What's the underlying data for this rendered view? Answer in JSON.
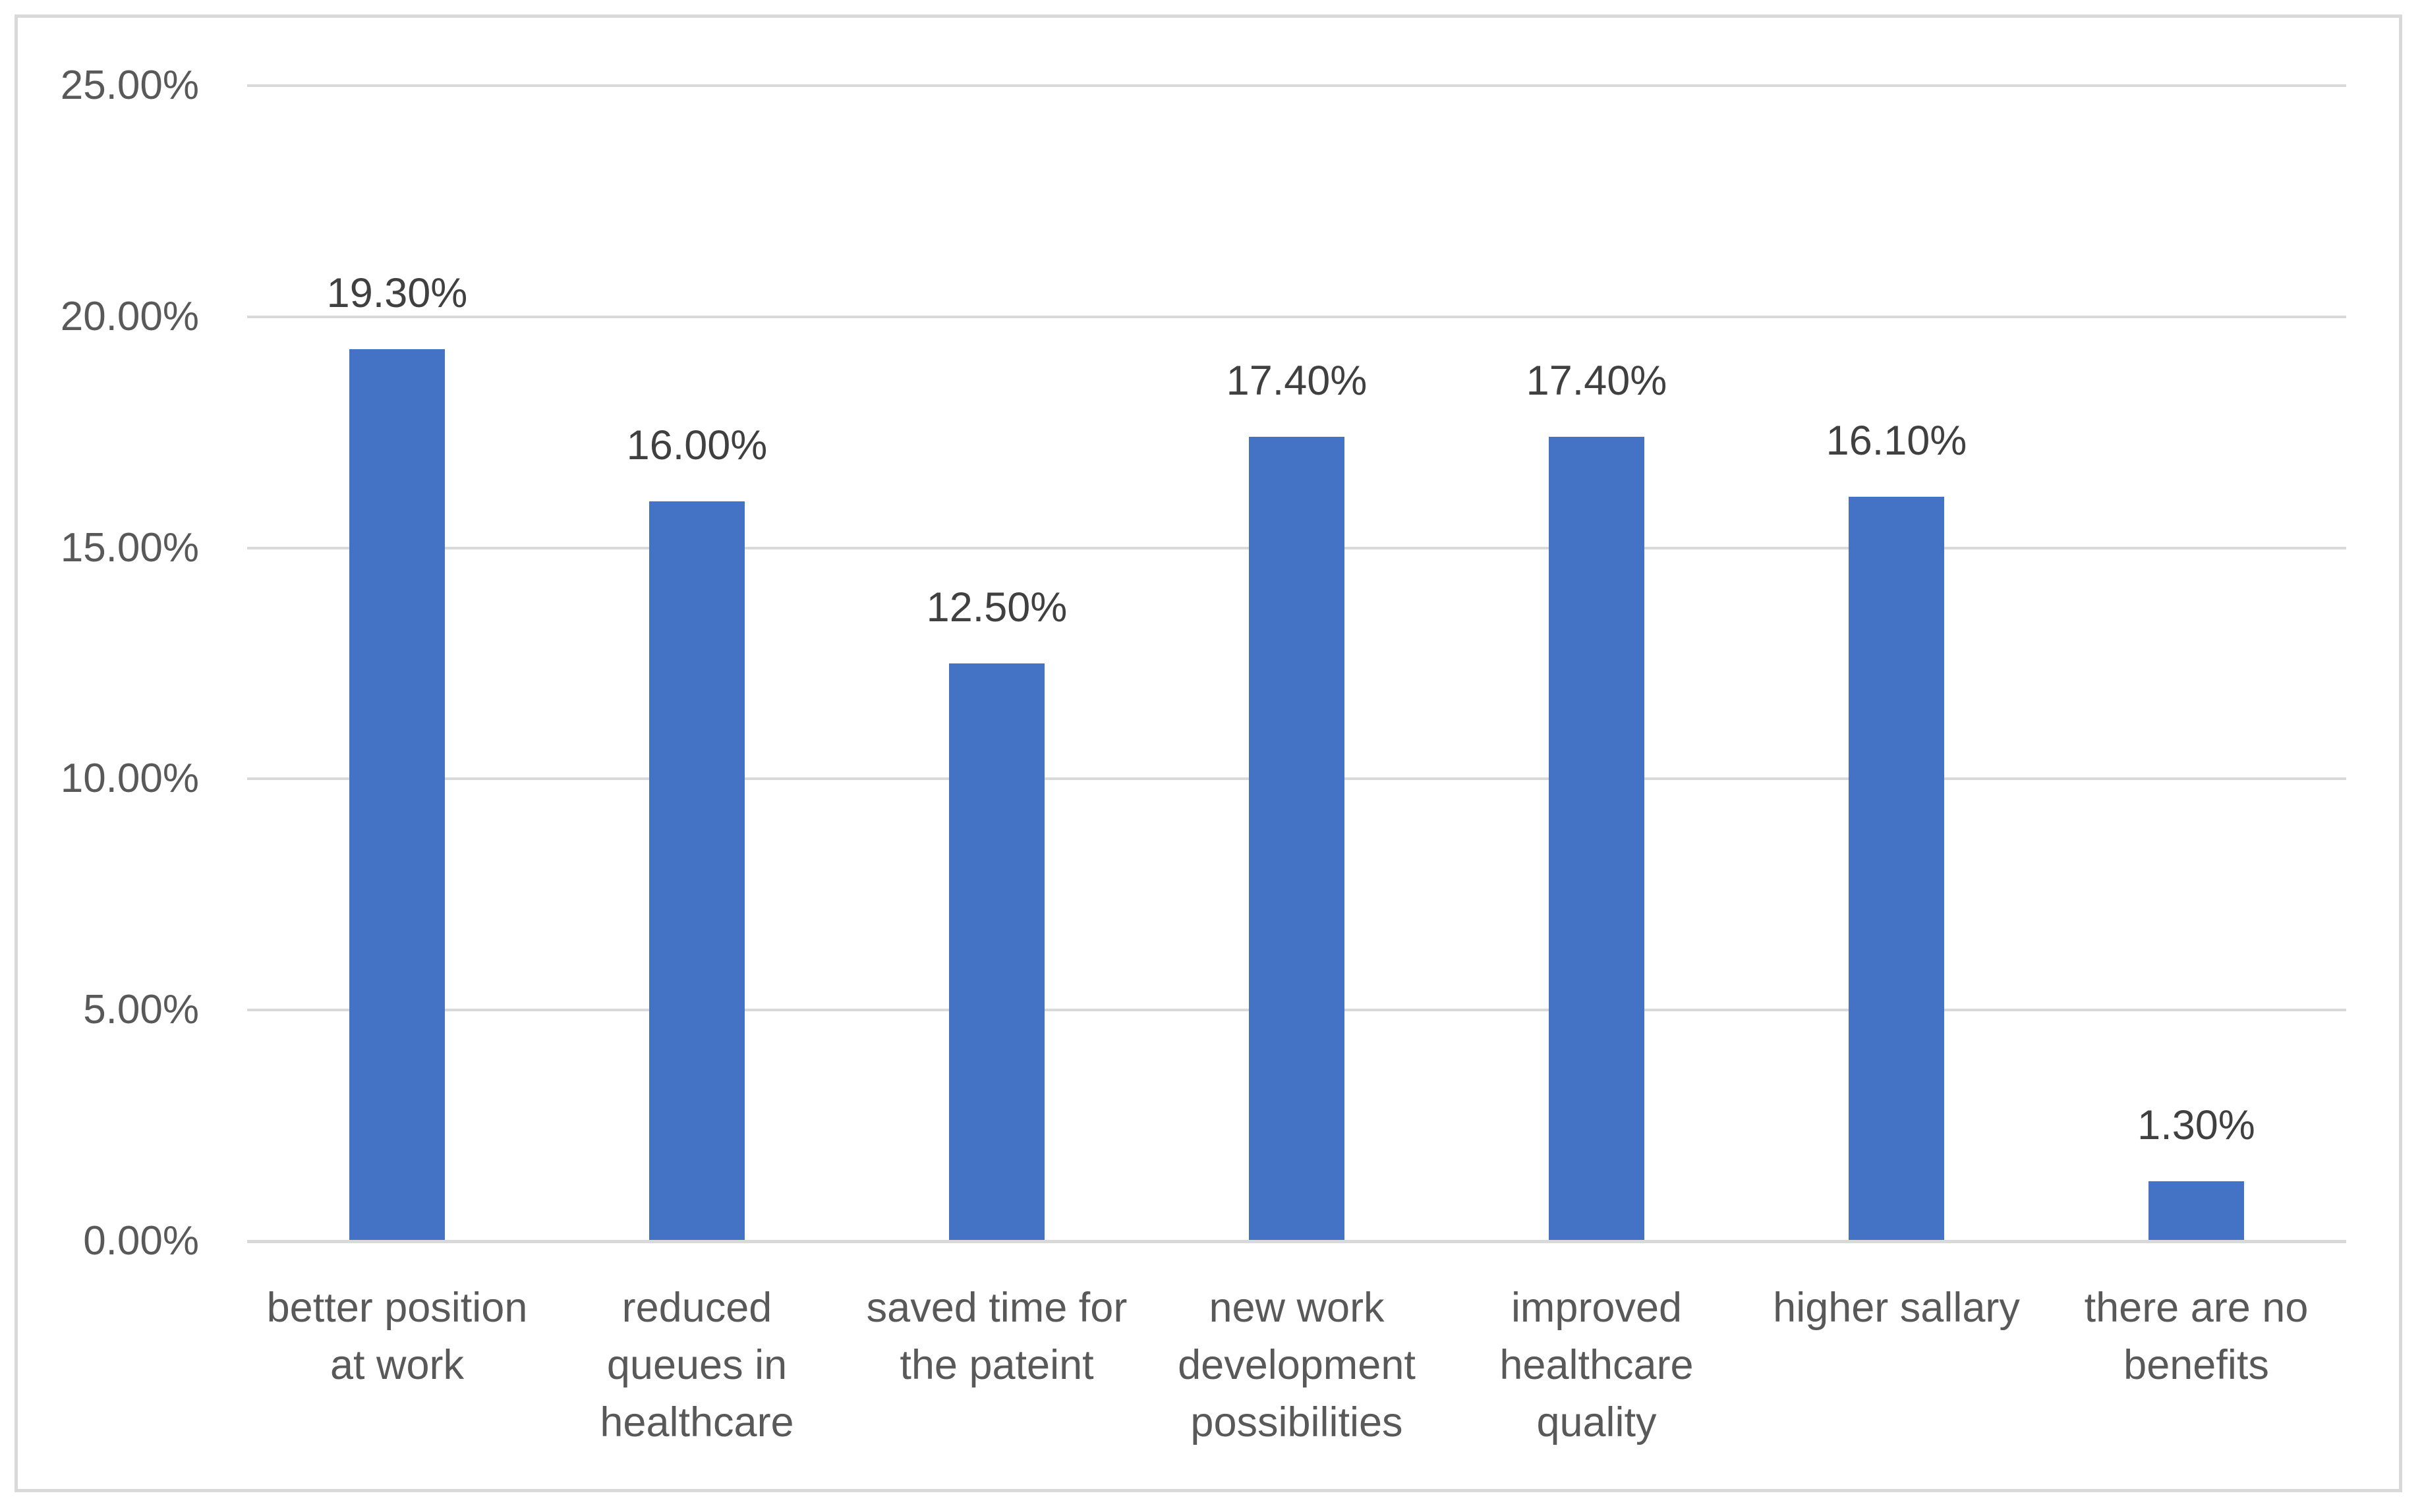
{
  "chart_data": {
    "type": "bar",
    "title": "",
    "xlabel": "",
    "ylabel": "",
    "categories": [
      "better position at work",
      "reduced queues in healthcare",
      "saved time for the pateint",
      "new work development possibilities",
      "improved healthcare quality",
      "higher sallary",
      "there are no benefits"
    ],
    "category_lines": [
      [
        "better position",
        "at work"
      ],
      [
        "reduced",
        "queues in",
        "healthcare"
      ],
      [
        "saved time for",
        "the pateint"
      ],
      [
        "new work",
        "development",
        "possibilities"
      ],
      [
        "improved",
        "healthcare",
        "quality"
      ],
      [
        "higher sallary"
      ],
      [
        "there are no",
        "benefits"
      ]
    ],
    "values": [
      19.3,
      16.0,
      12.5,
      17.4,
      17.4,
      16.1,
      1.3
    ],
    "data_labels": [
      "19.30%",
      "16.00%",
      "12.50%",
      "17.40%",
      "17.40%",
      "16.10%",
      "1.30%"
    ],
    "ylim": [
      0,
      25
    ],
    "ytick_step": 5,
    "ytick_labels": [
      "0.00%",
      "5.00%",
      "10.00%",
      "15.00%",
      "20.00%",
      "25.00%"
    ],
    "grid": true,
    "legend": false,
    "colors": {
      "bar": "#4472C4",
      "gridline": "#D9D9D9",
      "axis_line": "#D9D9D9",
      "frame_border": "#D9D9D9",
      "axis_text": "#595959",
      "data_label_text": "#404040",
      "background": "#FFFFFF"
    }
  }
}
